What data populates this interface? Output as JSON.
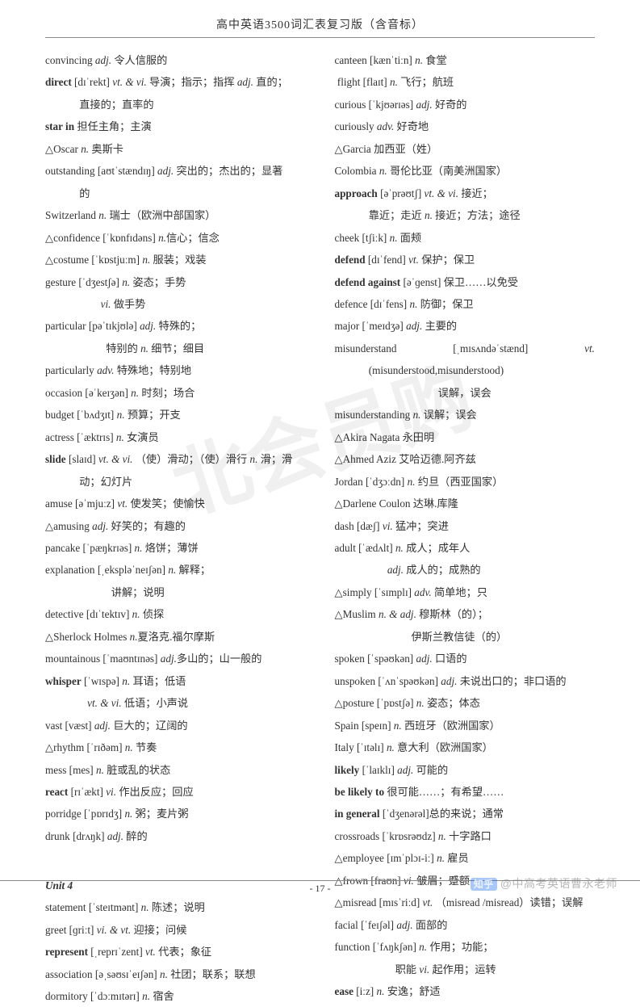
{
  "header": "高中英语3500词汇表复习版（含音标）",
  "pageNumber": "- 17 -",
  "watermark": "北会员购",
  "zhihu": {
    "logo": "知乎",
    "text": "@中高考英语曹永老师"
  },
  "left": [
    {
      "t": "entry",
      "html": "convincing <span class='pos'>adj.</span>  令人信服的"
    },
    {
      "t": "entry",
      "html": "<b>direct</b>  [dɪˈrekt] <span class='pos'>vt. & vi.</span>  导演；指示；指挥 <span class='pos'>adj.</span> 直的；"
    },
    {
      "t": "cont",
      "html": "直接的；直率的"
    },
    {
      "t": "entry",
      "html": "<b>star in</b> 担任主角；主演"
    },
    {
      "t": "entry",
      "html": "△Oscar <span class='pos'>n.</span> 奥斯卡"
    },
    {
      "t": "entry",
      "html": "outstanding  [aʊtˈstændɪŋ]  <span class='pos'>adj.</span> 突出的；杰出的；显著"
    },
    {
      "t": "cont",
      "html": "的"
    },
    {
      "t": "entry",
      "html": "Switzerland <span class='pos'>n.</span>  瑞士（欧洲中部国家）"
    },
    {
      "t": "entry",
      "html": "△confidence [ˈkɒnfɪdəns]  <span class='pos'>n.</span>信心；信念"
    },
    {
      "t": "entry",
      "html": "△costume [ˈkɒstjuːm] <span class='pos'>n.</span>  服装；戏装"
    },
    {
      "t": "entry",
      "html": "gesture  [ˈdʒestʃə] <span class='pos'>n.</span>  姿态；手势"
    },
    {
      "t": "cont",
      "html": "&nbsp;&nbsp;&nbsp;&nbsp;&nbsp;&nbsp;&nbsp;&nbsp;<span class='pos'>vi.</span>  做手势"
    },
    {
      "t": "entry",
      "html": "particular  [pəˈtɪkjʊlə] <span class='pos'>adj.</span> 特殊的；"
    },
    {
      "t": "cont",
      "html": "&nbsp;&nbsp;&nbsp;&nbsp;&nbsp;&nbsp;&nbsp;&nbsp;&nbsp;&nbsp;特别的  <span class='pos'>n.</span>  细节；细目"
    },
    {
      "t": "entry",
      "html": "particularly <span class='pos'>adv.</span>  特殊地；特别地"
    },
    {
      "t": "entry",
      "html": "occasion [əˈkeɪʒən]  <span class='pos'>n.</span> 时刻；场合"
    },
    {
      "t": "entry",
      "html": "budget  [ˈbʌdʒɪt] <span class='pos'>n.</span> 预算；开支"
    },
    {
      "t": "entry",
      "html": "actress  [ˈæktrɪs] <span class='pos'>n.</span>  女演员"
    },
    {
      "t": "entry",
      "html": "<b>slide</b> [slaɪd] <span class='pos'>vt. & vi.</span> （使）滑动；（使）滑行 <span class='pos'>n.</span>  滑；滑"
    },
    {
      "t": "cont",
      "html": "动；幻灯片"
    },
    {
      "t": "entry",
      "html": "amuse  [əˈmjuːz]  <span class='pos'>vt.</span>  使发笑；使愉快"
    },
    {
      "t": "entry",
      "html": "△amusing <span class='pos'>adj.</span> 好笑的；有趣的"
    },
    {
      "t": "entry",
      "html": "pancake [ˈpæŋkrɪəs] <span class='pos'>n.</span>  烙饼；薄饼"
    },
    {
      "t": "entry",
      "html": "explanation  [ˌekspləˈneɪʃən]  <span class='pos'>n.</span>  解释；"
    },
    {
      "t": "cont",
      "html": "&nbsp;&nbsp;&nbsp;&nbsp;&nbsp;&nbsp;&nbsp;&nbsp;&nbsp;&nbsp;&nbsp;&nbsp;讲解；说明"
    },
    {
      "t": "entry",
      "html": "detective [dɪˈtektɪv] <span class='pos'>n.</span>  侦探"
    },
    {
      "t": "entry",
      "html": "△Sherlock Holmes <span class='pos'>n.</span>夏洛克.福尔摩斯"
    },
    {
      "t": "entry",
      "html": "mountainous   [ˈmaʊntɪnəs] <span class='pos'>adj.</span>多山的；山一般的"
    },
    {
      "t": "entry",
      "html": "<b>whisper</b>  [ˈwɪspə] <span class='pos'>n.</span> 耳语；低语"
    },
    {
      "t": "cont",
      "html": "&nbsp;&nbsp;&nbsp;<span class='pos'>vt. & vi.</span>  低语；小声说"
    },
    {
      "t": "entry",
      "html": "vast  [væst] <span class='pos'>adj.</span> 巨大的；辽阔的"
    },
    {
      "t": "entry",
      "html": "△rhythm  [ˈrɪðəm] <span class='pos'>n.</span>  节奏"
    },
    {
      "t": "entry",
      "html": "mess [mes] <span class='pos'>n.</span>  脏或乱的状态"
    },
    {
      "t": "entry",
      "html": "<b>react</b> [rɪˈækt] <span class='pos'>vi.</span>  作出反应；回应"
    },
    {
      "t": "entry",
      "html": "porridge [ˈpɒrɪdʒ] <span class='pos'>n.</span>  粥；麦片粥"
    },
    {
      "t": "entry",
      "html": "drunk [drʌŋk] <span class='pos'>adj.</span> 醉的"
    },
    {
      "t": "spacer",
      "html": "&nbsp;"
    },
    {
      "t": "unit",
      "html": "Unit 4"
    },
    {
      "t": "entry",
      "html": "statement [ˈsteɪtmənt] <span class='pos'>n.</span>  陈述；说明"
    },
    {
      "t": "entry",
      "html": "greet [ɡriːt] <span class='pos'>vi.  &  vt.</span> 迎接；问候"
    },
    {
      "t": "entry",
      "html": "<b>represent</b>  [ˌreprɪˈzent]  <span class='pos'>vt.</span>  代表；象征"
    },
    {
      "t": "entry",
      "html": "association  [əˌsəʊsɪˈeɪʃən] <span class='pos'>n.</span>  社团；联系；联想"
    },
    {
      "t": "entry",
      "html": "dormitory [ˈdɔːmɪtərɪ] <span class='pos'>n.</span>  宿舍"
    }
  ],
  "right": [
    {
      "t": "entry",
      "html": "canteen   [kænˈtiːn] <span class='pos'>n.</span>  食堂"
    },
    {
      "t": "entry",
      "html": "&nbsp;flight [flaɪt] <span class='pos'>n.</span>  飞行；航班"
    },
    {
      "t": "entry",
      "html": "curious  [ˈkjʊərɪəs]  <span class='pos'>adj.</span>  好奇的"
    },
    {
      "t": "entry",
      "html": "curiously  <span class='pos'>adv.</span>     好奇地"
    },
    {
      "t": "entry",
      "html": "△Garcia    加西亚（姓）"
    },
    {
      "t": "entry",
      "html": "Colombia <span class='pos'>n.</span>  哥伦比亚（南美洲国家）"
    },
    {
      "t": "entry",
      "html": "<b>approach</b> [əˈprəʊtʃ] <span class='pos'>vt.  &  vi.</span> 接近；"
    },
    {
      "t": "cont",
      "html": "靠近；走近  <span class='pos'>n.</span>  接近；方法；途径"
    },
    {
      "t": "entry",
      "html": "cheek  [tʃiːk]  <span class='pos'>n.</span>   面颊"
    },
    {
      "t": "entry",
      "html": "<b>defend</b>  [dɪˈfend] <span class='pos'>vt.</span>  保护；保卫"
    },
    {
      "t": "entry",
      "html": "<b>defend against</b>  [əˈɡenst] 保卫……以免受"
    },
    {
      "t": "entry",
      "html": "defence  [dɪˈfens] <span class='pos'>n.</span>  防御；保卫"
    },
    {
      "t": "entry",
      "html": "major  [ˈmeɪdʒə] <span class='pos'>adj.</span> 主要的"
    },
    {
      "t": "split",
      "left": "misunderstand",
      "mid": "[ˌmɪsʌndəˈstænd]",
      "right": "<span class='pos'>vt.</span>"
    },
    {
      "t": "cont",
      "html": "(misunderstood,misunderstood)"
    },
    {
      "t": "cont-center",
      "html": "误解，误会"
    },
    {
      "t": "entry",
      "html": "misunderstanding <span class='pos'>n.</span>  误解；误会"
    },
    {
      "t": "entry",
      "html": "△Akira Nagata  永田明"
    },
    {
      "t": "entry",
      "html": "△Ahmed Aziz  艾哈迈德.阿齐兹"
    },
    {
      "t": "entry",
      "html": "Jordan  [ˈdʒɔːdn] <span class='pos'>n.</span> 约旦（西亚国家）"
    },
    {
      "t": "entry",
      "html": "△Darlene Coulon  达琳.库隆"
    },
    {
      "t": "entry",
      "html": "dash  [dæʃ] <span class='pos'>vi.</span>  猛冲；突进"
    },
    {
      "t": "entry",
      "html": "adult  [ˈædʌlt] <span class='pos'>n.</span> 成人；成年人"
    },
    {
      "t": "cont",
      "html": "&nbsp;&nbsp;&nbsp;&nbsp;&nbsp;&nbsp;&nbsp;<span class='pos'>adj.</span> 成人的；成熟的"
    },
    {
      "t": "entry",
      "html": "△simply  [ˈsɪmplɪ] <span class='pos'>adv.</span>  简单地；只"
    },
    {
      "t": "entry",
      "html": "△Muslim  <span class='pos'>n.  &  adj.</span> 穆斯林（的）；"
    },
    {
      "t": "cont",
      "html": "&nbsp;&nbsp;&nbsp;&nbsp;&nbsp;&nbsp;&nbsp;&nbsp;&nbsp;&nbsp;&nbsp;&nbsp;&nbsp;&nbsp;&nbsp;&nbsp;伊斯兰教信徒（的）"
    },
    {
      "t": "entry",
      "html": "spoken  [ˈspəʊkən] <span class='pos'>adj.</span>  口语的"
    },
    {
      "t": "entry",
      "html": "unspoken  [ˈʌnˈspəʊkən] <span class='pos'>adj.</span> 未说出口的；非口语的"
    },
    {
      "t": "entry",
      "html": "△posture  [ˈpɒstʃə] <span class='pos'>n.</span> 姿态；体态"
    },
    {
      "t": "entry",
      "html": "Spain  [speɪn] <span class='pos'>n.</span> 西班牙（欧洲国家）"
    },
    {
      "t": "entry",
      "html": "Italy [ˈɪtəlɪ] <span class='pos'>n.</span> 意大利（欧洲国家）"
    },
    {
      "t": "entry",
      "html": "<b>likely</b> [ˈlaɪklɪ] <span class='pos'>adj.</span> 可能的"
    },
    {
      "t": "entry",
      "html": "<b>be likely to</b>  很可能……；有希望……"
    },
    {
      "t": "entry",
      "html": "<b>in general</b>   [ˈdʒenərəl]总的来说；通常"
    },
    {
      "t": "entry",
      "html": "crossroads [ˈkrɒsrəʊdz] <span class='pos'>n.</span>  十字路口"
    },
    {
      "t": "entry",
      "html": "△employee [ɪmˈplɔɪ-iː]  <span class='pos'>n.</span>  雇员"
    },
    {
      "t": "entry",
      "html": "△frown  [fraʊn] <span class='pos'>vi.</span>  皱眉；蹙额"
    },
    {
      "t": "entry",
      "html": "△misread  [mɪsˈriːd] <span class='pos'>vt.</span>  （misread /misread）读错；误解"
    },
    {
      "t": "entry",
      "html": "facial [ˈfeɪʃəl] <span class='pos'>adj.</span>  面部的"
    },
    {
      "t": "entry",
      "html": "function  [ˈfʌŋkʃən]  <span class='pos'>n.</span>  作用；功能；"
    },
    {
      "t": "cont",
      "html": "&nbsp;&nbsp;&nbsp;&nbsp;&nbsp;&nbsp;&nbsp;&nbsp;&nbsp;&nbsp;职能  <span class='pos'>vi.</span>  起作用；运转"
    },
    {
      "t": "entry",
      "html": "<b>ease</b>  [iːz] <span class='pos'>n.</span>  安逸；舒适"
    }
  ]
}
